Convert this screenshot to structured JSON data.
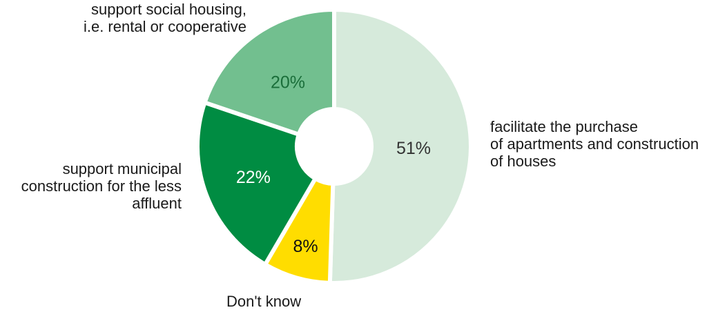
{
  "chart_data": {
    "type": "pie",
    "variant": "donut",
    "title": "",
    "categories": [
      "facilitate the purchase of apartments and construction of houses",
      "Don't know",
      "support municipal construction for the less affluent",
      "support social housing, i.e. rental or cooperative"
    ],
    "values": [
      51,
      8,
      22,
      20
    ],
    "value_labels": [
      "51%",
      "8%",
      "22%",
      "20%"
    ],
    "colors": [
      "#d6eadb",
      "#ffdd00",
      "#008c42",
      "#72bf8f"
    ],
    "label_colors": [
      "#333333",
      "#111111",
      "#ffffff",
      "#1a6e3a"
    ],
    "start_angle": "top, clockwise",
    "legend": "none (direct labels)"
  },
  "labels": {
    "purchase": [
      "facilitate the purchase",
      "of apartments and construction",
      "of houses"
    ],
    "dontknow": [
      "Don't know"
    ],
    "municipal": [
      "support municipal",
      "construction for the less",
      "affluent"
    ],
    "social": [
      "support social housing,",
      "i.e. rental or cooperative"
    ]
  }
}
